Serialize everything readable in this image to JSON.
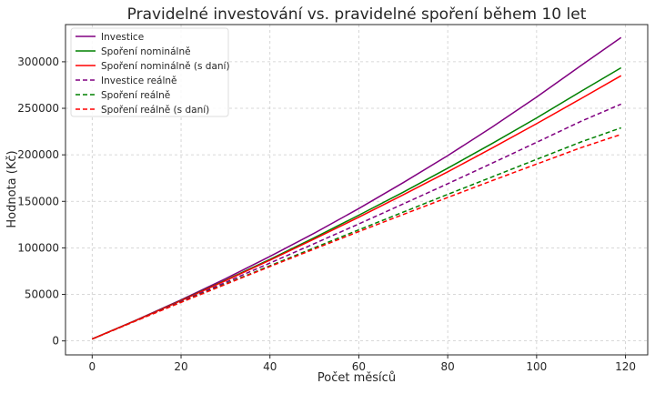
{
  "chart_data": {
    "type": "line",
    "title": "Pravidelné investování vs. pravidelné spoření během 10 let",
    "xlabel": "Počet měsíců",
    "ylabel": "Hodnota (Kč)",
    "xlim": [
      -6,
      125
    ],
    "ylim": [
      -15000,
      340000
    ],
    "xticks": [
      0,
      20,
      40,
      60,
      80,
      100,
      120
    ],
    "yticks": [
      0,
      50000,
      100000,
      150000,
      200000,
      250000,
      300000
    ],
    "grid": true,
    "legend_position": "top-left",
    "x": [
      0,
      10,
      20,
      30,
      40,
      50,
      60,
      70,
      80,
      90,
      100,
      110,
      119
    ],
    "series": [
      {
        "name": "Investice",
        "color": "#800080",
        "style": "solid",
        "values": [
          2000,
          22560,
          44160,
          66880,
          90800,
          115900,
          142300,
          170100,
          199200,
          229900,
          262200,
          296000,
          326000
        ]
      },
      {
        "name": "Spoření nominálně",
        "color": "#008000",
        "style": "solid",
        "values": [
          2000,
          22380,
          43440,
          65220,
          87720,
          111000,
          135100,
          159900,
          185700,
          212200,
          239700,
          268200,
          293500
        ]
      },
      {
        "name": "Spoření nominálně (s daní)",
        "color": "#ff0000",
        "style": "solid",
        "values": [
          2000,
          22310,
          43210,
          64710,
          86830,
          109600,
          133000,
          157000,
          181800,
          207300,
          233500,
          260400,
          285000
        ]
      },
      {
        "name": "Investice reálně",
        "color": "#800080",
        "style": "dashed",
        "values": [
          2000,
          22100,
          42380,
          62880,
          83630,
          104570,
          125770,
          147280,
          168960,
          191030,
          213430,
          236030,
          254500
        ]
      },
      {
        "name": "Spoření reálně",
        "color": "#008000",
        "style": "dashed",
        "values": [
          2000,
          21920,
          41690,
          61320,
          80790,
          100150,
          119410,
          138460,
          157500,
          176320,
          195120,
          213860,
          229000
        ]
      },
      {
        "name": "Spoření reálně (s daní)",
        "color": "#ff0000",
        "style": "dashed",
        "values": [
          2000,
          21860,
          41470,
          60830,
          79970,
          98880,
          117550,
          135940,
          154200,
          172250,
          190070,
          207640,
          222000
        ]
      }
    ]
  }
}
